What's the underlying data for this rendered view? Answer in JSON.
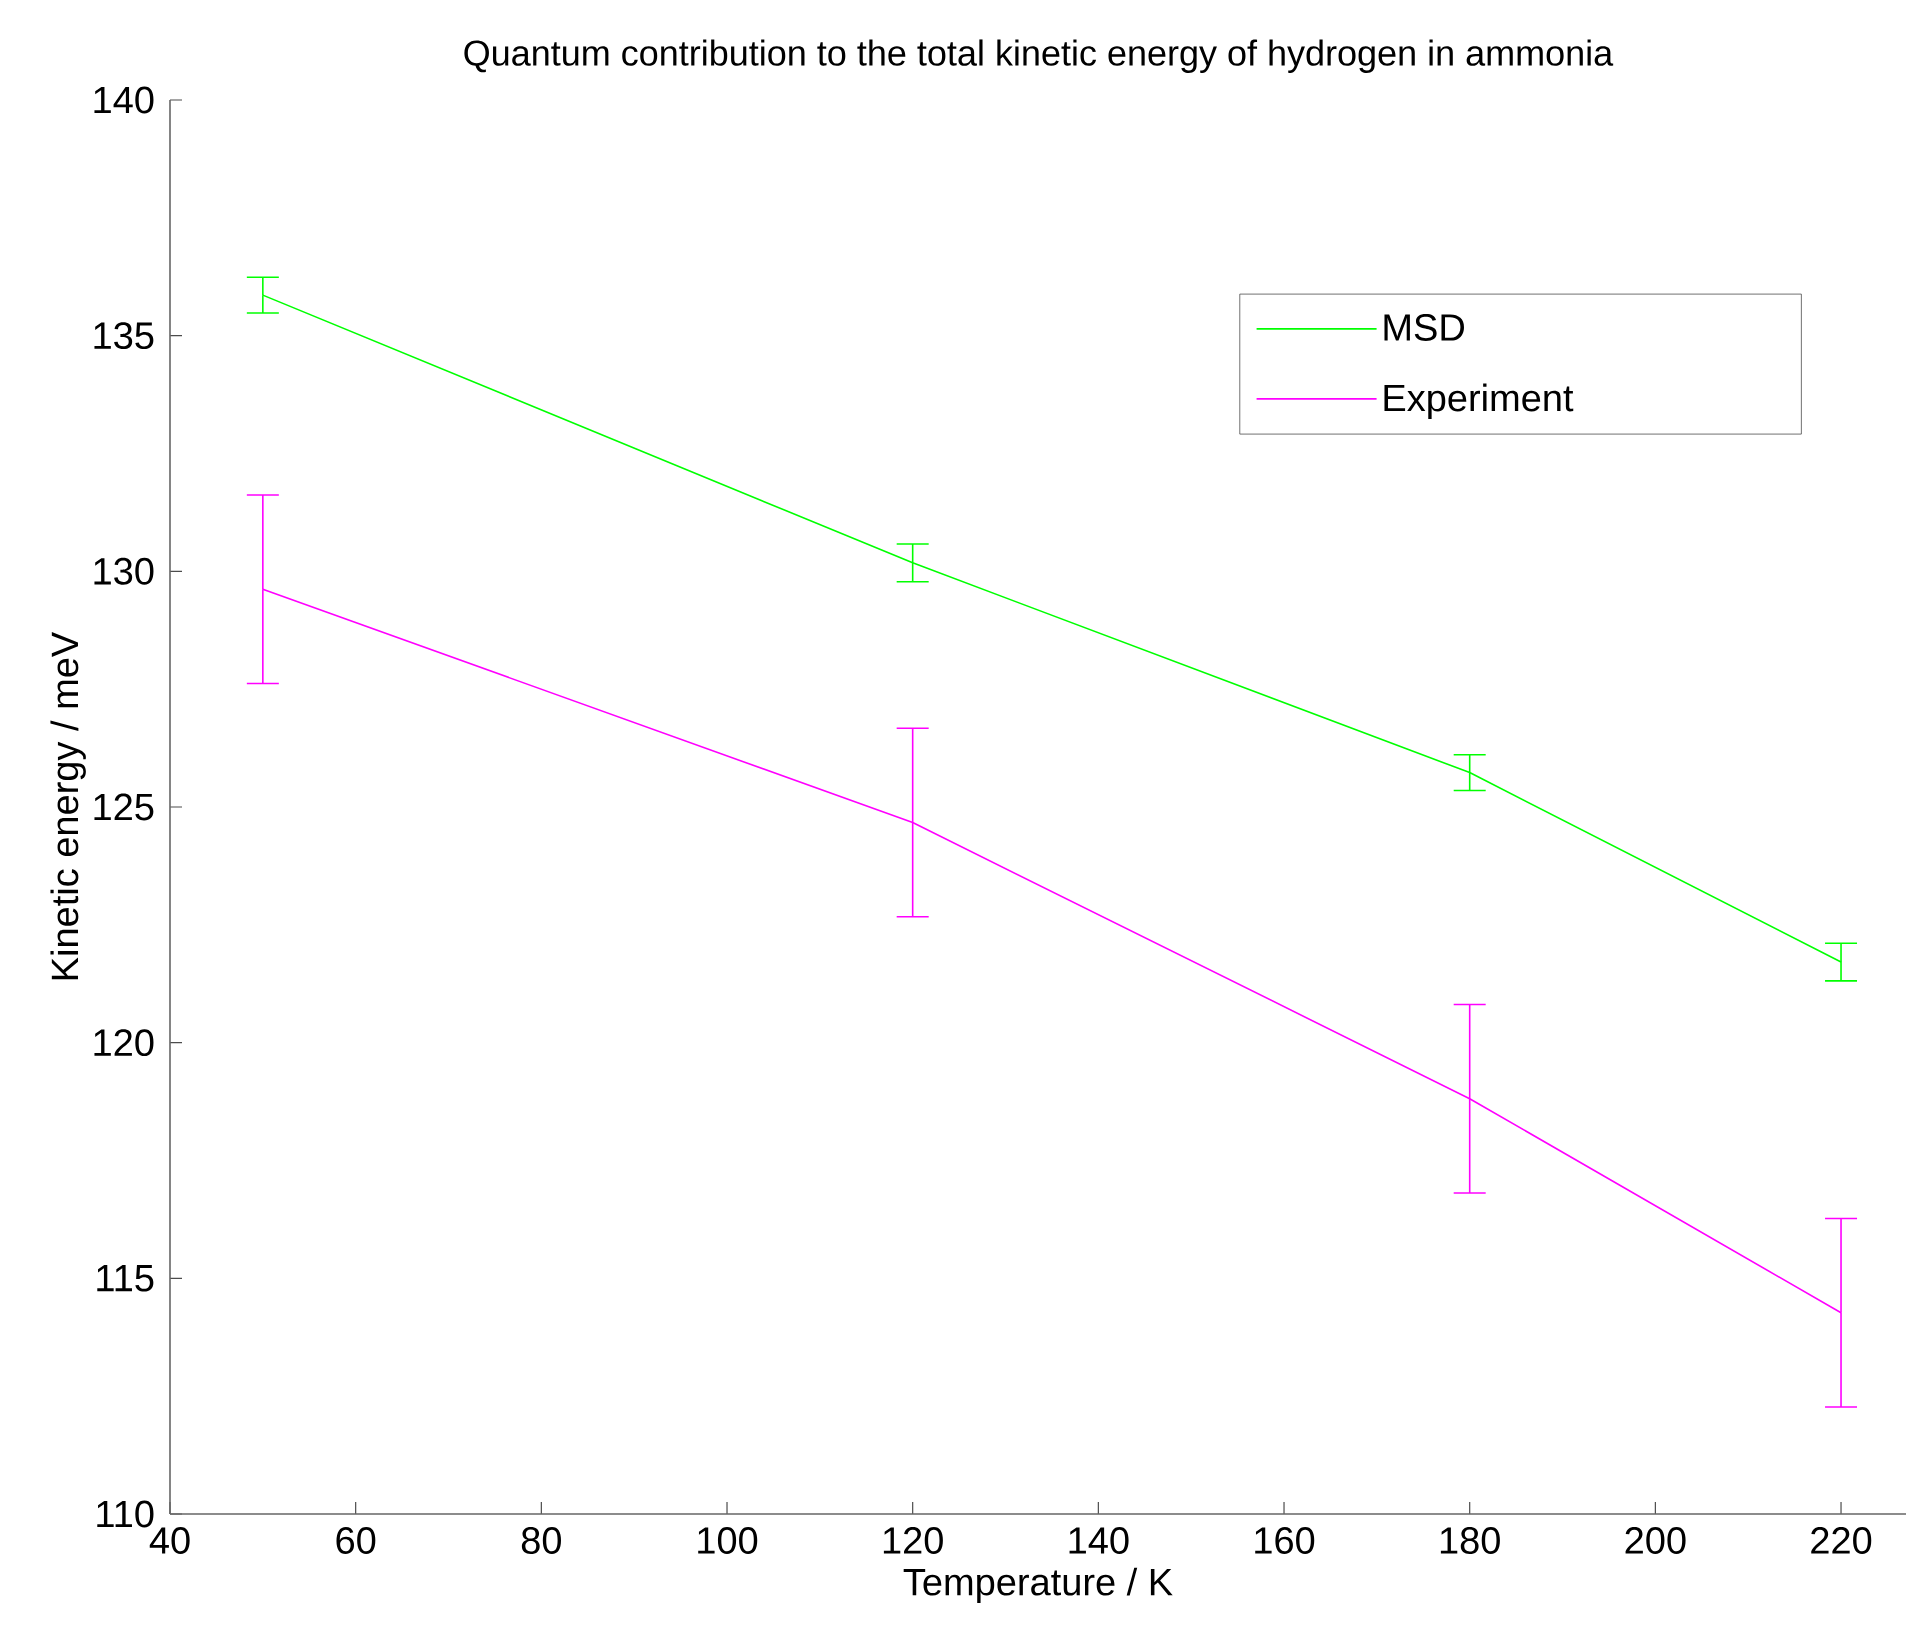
{
  "chart_data": {
    "type": "line",
    "title": "Quantum contribution to the total kinetic energy of hydrogen in ammonia",
    "xlabel": "Temperature / K",
    "ylabel": "Kinetic energy / meV",
    "x": [
      50,
      120,
      180,
      220
    ],
    "series": [
      {
        "name": "MSD",
        "color": "#00ff00",
        "values": [
          135.86,
          130.18,
          125.73,
          121.71
        ],
        "errors": [
          0.38,
          0.4,
          0.38,
          0.4
        ]
      },
      {
        "name": "Experiment",
        "color": "#ff00ff",
        "values": [
          129.62,
          124.67,
          118.81,
          114.27
        ],
        "errors": [
          2,
          2,
          2,
          2
        ]
      }
    ],
    "xlim": [
      40,
      227
    ],
    "xticks": [
      40,
      60,
      80,
      100,
      120,
      140,
      160,
      180,
      200,
      220
    ],
    "ylim": [
      110,
      140
    ],
    "yticks": [
      110,
      115,
      120,
      125,
      130,
      135,
      140
    ],
    "grid": false,
    "legend": "top right",
    "marker": "none",
    "line_style": "solid"
  }
}
